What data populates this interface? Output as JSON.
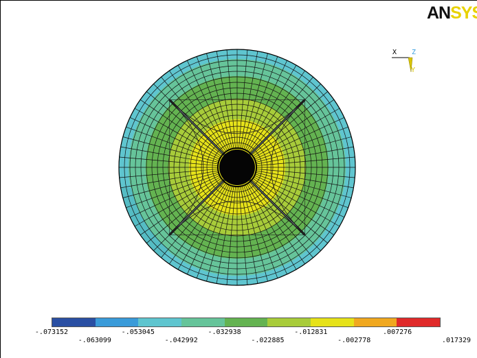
{
  "logo": {
    "dark_part": "AN",
    "light_part": "SYS"
  },
  "triad": {
    "x_label": "X",
    "z_label": "Z",
    "y_label": "Y"
  },
  "colors": {
    "background": "#ffffff",
    "mesh_line": "#111111",
    "contour_band_colors": [
      "#2a4fa3",
      "#3a9bd9",
      "#5fc5cf",
      "#66c49a",
      "#64b351",
      "#a8cc3a",
      "#e6e21a",
      "#f0a820",
      "#e02a2a"
    ]
  },
  "legend": {
    "values": [
      "-.073152",
      "-.063099",
      "-.053045",
      "-.042992",
      "-.032938",
      "-.022885",
      "-.012831",
      "-.002778",
      ".007276",
      ".017329"
    ]
  },
  "model": {
    "contour_rings_inner_to_outer": [
      "#e6e21a",
      "#a8cc3a",
      "#64b351",
      "#66c49a",
      "#5fc5cf"
    ],
    "radial_mesh_divisions": 72,
    "circumferential_mesh_rings": 18
  }
}
